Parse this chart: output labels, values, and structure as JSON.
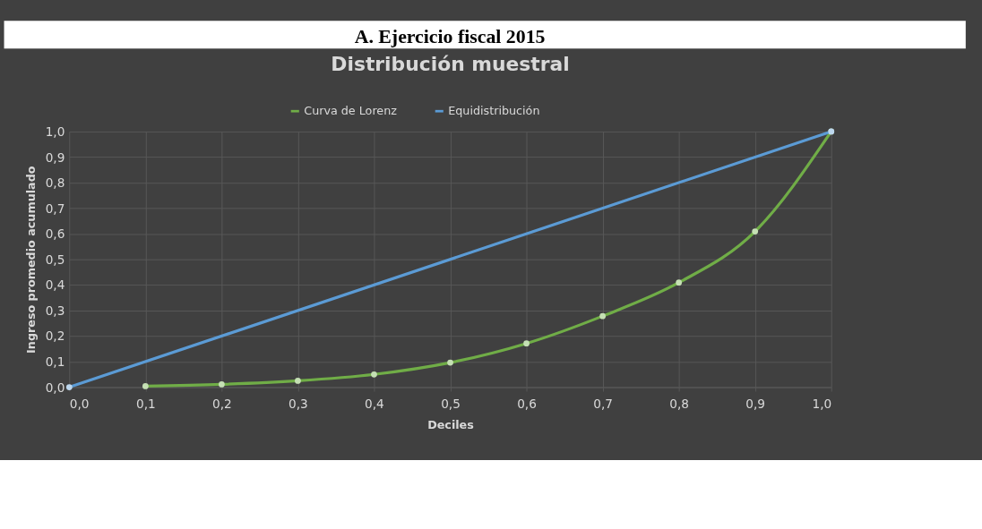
{
  "chart_data": {
    "type": "line",
    "title": "Distribución muestral",
    "subtitle": "A.  Ejercicio fiscal 2015",
    "xlabel": "Deciles",
    "ylabel": "Ingreso promedio acumulado",
    "series": [
      {
        "name": "Curva de Lorenz",
        "color": "#70ad47",
        "x": [
          0.1,
          0.2,
          0.3,
          0.4,
          0.5,
          0.6,
          0.7,
          0.8,
          0.9,
          1.0
        ],
        "values": [
          0.004,
          0.011,
          0.025,
          0.05,
          0.096,
          0.171,
          0.278,
          0.409,
          0.609,
          1.0
        ]
      },
      {
        "name": "Equidistribución",
        "color": "#5b9bd5",
        "x": [
          0.0,
          1.0
        ],
        "values": [
          0.0,
          1.0
        ]
      }
    ],
    "xlim": [
      0,
      1
    ],
    "ylim": [
      0,
      1
    ],
    "xticks": [
      {
        "value": 0,
        "label": "0,0"
      },
      {
        "value": 0.1,
        "label": "0,1"
      },
      {
        "value": 0.2,
        "label": "0,2"
      },
      {
        "value": 0.3,
        "label": "0,3"
      },
      {
        "value": 0.4,
        "label": "0,4"
      },
      {
        "value": 0.5,
        "label": "0,5"
      },
      {
        "value": 0.6,
        "label": "0,6"
      },
      {
        "value": 0.7,
        "label": "0,7"
      },
      {
        "value": 0.8,
        "label": "0,8"
      },
      {
        "value": 0.9,
        "label": "0,9"
      },
      {
        "value": 1,
        "label": "1,0"
      }
    ],
    "yticks": [
      {
        "value": 0,
        "label": "0,0"
      },
      {
        "value": 0.1,
        "label": "0,1"
      },
      {
        "value": 0.2,
        "label": "0,2"
      },
      {
        "value": 0.3,
        "label": "0,3"
      },
      {
        "value": 0.4,
        "label": "0,4"
      },
      {
        "value": 0.5,
        "label": "0,5"
      },
      {
        "value": 0.6,
        "label": "0,6"
      },
      {
        "value": 0.7,
        "label": "0,7"
      },
      {
        "value": 0.8,
        "label": "0,8"
      },
      {
        "value": 0.9,
        "label": "0,9"
      },
      {
        "value": 1,
        "label": "1,0"
      }
    ],
    "grid": true,
    "legend": "top",
    "marker": "circle",
    "line_style": "solid"
  }
}
